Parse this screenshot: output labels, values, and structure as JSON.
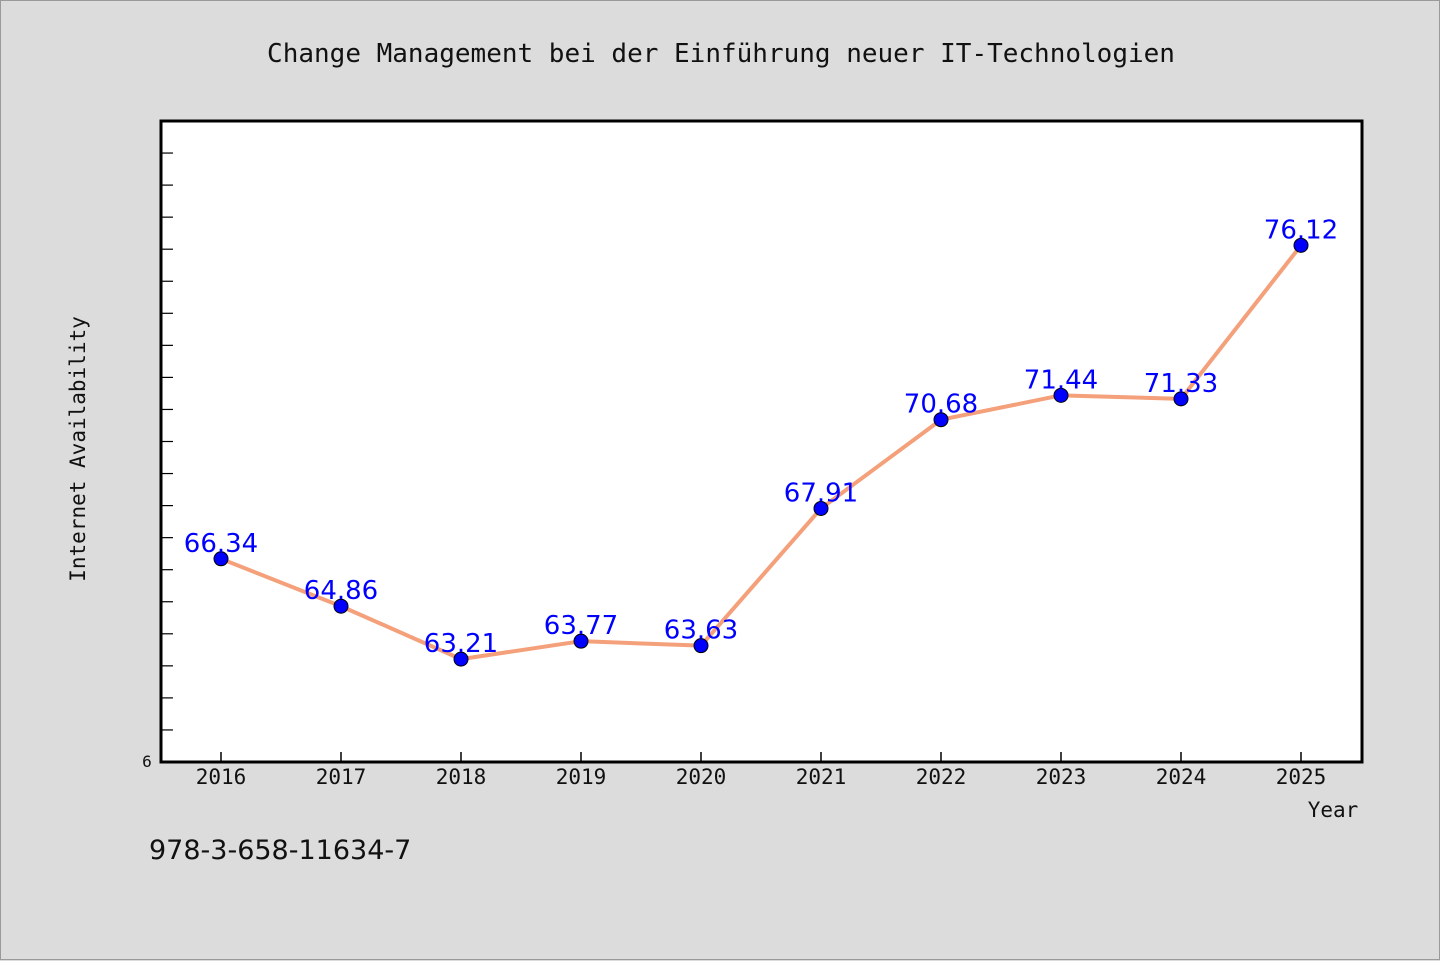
{
  "chart_data": {
    "type": "line",
    "title": "Change Management bei der Einführung neuer IT-Technologien",
    "xlabel": "Year",
    "ylabel": "Internet Availability",
    "categories": [
      "2016",
      "2017",
      "2018",
      "2019",
      "2020",
      "2021",
      "2022",
      "2023",
      "2024",
      "2025"
    ],
    "series": [
      {
        "values": [
          66.34,
          64.86,
          63.21,
          63.77,
          63.63,
          67.91,
          70.68,
          71.44,
          71.33,
          76.12
        ],
        "data_labels": [
          "66.34",
          "64.86",
          "63.21",
          "63.77",
          "63.63",
          "67.91",
          "70.68",
          "71.44",
          "71.33",
          "76.12"
        ]
      }
    ],
    "ylim": [
      60,
      80
    ],
    "y_min_label": "6",
    "grid": false,
    "legend": "none",
    "line_color": "#f4a07a",
    "marker_color": "#0000ff",
    "label_color": "#0000ff"
  },
  "footnote": "978-3-658-11634-7"
}
